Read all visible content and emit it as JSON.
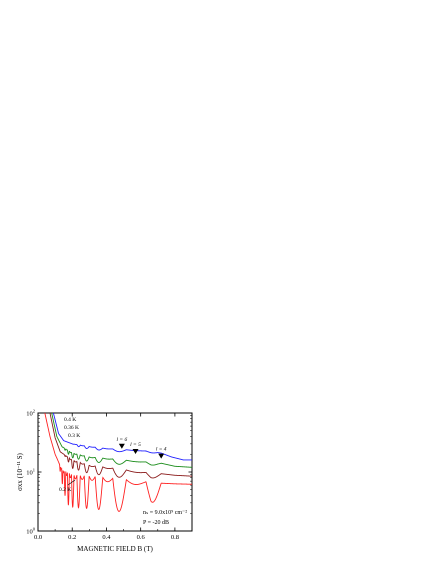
{
  "chart_data": {
    "type": "line",
    "xlabel": "MAGNETIC FIELD B (T)",
    "ylabel": "σxx (10⁻¹¹ S)",
    "xlim": [
      0.0,
      0.9
    ],
    "ylim": [
      1,
      100
    ],
    "yscale": "log",
    "x_ticks": [
      "0.0",
      "0.2",
      "0.4",
      "0.6",
      "0.8"
    ],
    "y_ticks": [
      {
        "base": "10",
        "exp": "0"
      },
      {
        "base": "10",
        "exp": "1"
      },
      {
        "base": "10",
        "exp": "2"
      }
    ],
    "series": [
      {
        "name": "0.4 K",
        "color": "#2020ff",
        "base": [
          [
            0.09,
            100
          ],
          [
            0.12,
            45
          ],
          [
            0.15,
            34
          ],
          [
            0.2,
            30
          ],
          [
            0.3,
            27
          ],
          [
            0.4,
            25
          ],
          [
            0.5,
            24
          ],
          [
            0.6,
            23
          ],
          [
            0.7,
            22
          ],
          [
            0.78,
            18
          ],
          [
            0.85,
            16
          ],
          [
            0.9,
            16
          ]
        ],
        "oscillation": {
          "start": 0.2,
          "end": 0.72,
          "amplitude": 0.04
        }
      },
      {
        "name": "0.36 K",
        "color": "#1a8c1a",
        "base": [
          [
            0.08,
            100
          ],
          [
            0.11,
            40
          ],
          [
            0.14,
            27
          ],
          [
            0.2,
            21
          ],
          [
            0.3,
            18
          ],
          [
            0.4,
            17
          ],
          [
            0.5,
            16
          ],
          [
            0.6,
            15
          ],
          [
            0.7,
            14.5
          ],
          [
            0.8,
            12.5
          ],
          [
            0.9,
            12
          ]
        ],
        "oscillation": {
          "start": 0.14,
          "end": 0.72,
          "amplitude": 0.08
        }
      },
      {
        "name": "0.3 K",
        "color": "#8a1a1a",
        "base": [
          [
            0.07,
            100
          ],
          [
            0.1,
            38
          ],
          [
            0.13,
            22
          ],
          [
            0.2,
            16
          ],
          [
            0.3,
            13
          ],
          [
            0.4,
            12
          ],
          [
            0.5,
            11
          ],
          [
            0.6,
            10
          ],
          [
            0.7,
            9.5
          ],
          [
            0.8,
            8.8
          ],
          [
            0.9,
            8.5
          ]
        ],
        "oscillation": {
          "start": 0.15,
          "end": 0.72,
          "amplitude": 0.14
        }
      },
      {
        "name": "0.2 K",
        "color": "#ff2020",
        "base": [
          [
            0.04,
            100
          ],
          [
            0.07,
            40
          ],
          [
            0.1,
            20
          ],
          [
            0.14,
            11
          ],
          [
            0.2,
            9
          ],
          [
            0.3,
            8.5
          ],
          [
            0.4,
            8
          ],
          [
            0.5,
            7.5
          ],
          [
            0.6,
            7
          ],
          [
            0.7,
            6.5
          ],
          [
            0.8,
            6.3
          ],
          [
            0.9,
            6.2
          ]
        ],
        "oscillation": {
          "start": 0.12,
          "end": 0.72,
          "amplitude": 0.55
        }
      }
    ],
    "labels": [
      "0.4 K",
      "0.36 K",
      "0.3 K",
      "0.2 K"
    ],
    "markers": [
      {
        "label": "l = 6",
        "x": 0.49,
        "y": 22
      },
      {
        "label": "l = 5",
        "x": 0.57,
        "y": 18
      },
      {
        "label": "l = 4",
        "x": 0.72,
        "y": 15
      }
    ],
    "annotation": {
      "line1": "nₛ = 9.0x10⁹ cm⁻²",
      "line2": "P = -20 dB"
    }
  }
}
